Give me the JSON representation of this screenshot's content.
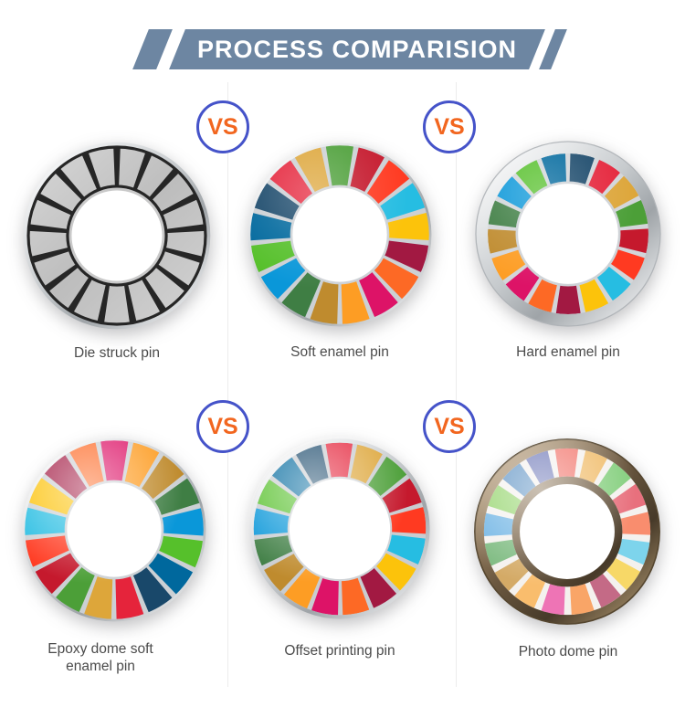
{
  "header": {
    "title": "PROCESS COMPARISION"
  },
  "vs": {
    "label": "VS"
  },
  "palette": {
    "banner": "#6d86a2",
    "vs_border": "#4553c9",
    "vs_text": "#f2661f",
    "label_text": "#4b4b4b",
    "divider": "#ececec",
    "metal_segment": "#c4c4c4",
    "metal_gap": "#262626",
    "silver": "#c6cacd",
    "bronze": "#6a573f",
    "background": "#ffffff"
  },
  "sdg_colors": [
    "#e5243b",
    "#dda63a",
    "#4c9f38",
    "#c5192d",
    "#ff3a21",
    "#26bde2",
    "#fcc30b",
    "#a21942",
    "#fd6925",
    "#dd1367",
    "#fd9d24",
    "#bf8b2e",
    "#3f7e44",
    "#0a97d9",
    "#56c02b",
    "#00689d",
    "#19486a"
  ],
  "photo_colors": [
    "#f2766d",
    "#f0bc6a",
    "#85cf7e",
    "#e8707d",
    "#f98d6e",
    "#7dd4ec",
    "#f7d867",
    "#c46a86",
    "#f9a567",
    "#ee74b5",
    "#f9bd6d",
    "#d4aa66",
    "#7cba7f",
    "#6fb4e4",
    "#96d56f",
    "#5f93c4",
    "#6f79b8"
  ],
  "pins": [
    {
      "id": "die-struck",
      "label": "Die struck pin",
      "style": "metal",
      "rotation": 0
    },
    {
      "id": "soft-enamel",
      "label": "Soft enamel pin",
      "style": "soft",
      "rotation": -53
    },
    {
      "id": "hard-enamel",
      "label": "Hard enamel pin",
      "style": "hard",
      "rotation": 21
    },
    {
      "id": "epoxy-dome",
      "label": "Epoxy dome soft enamel pin",
      "style": "epoxy",
      "rotation": 159
    },
    {
      "id": "offset-printing",
      "label": "Offset printing pin",
      "style": "offset",
      "rotation": -11
    },
    {
      "id": "photo-dome",
      "label": "Photo dome pin",
      "style": "photo",
      "rotation": -11
    }
  ]
}
